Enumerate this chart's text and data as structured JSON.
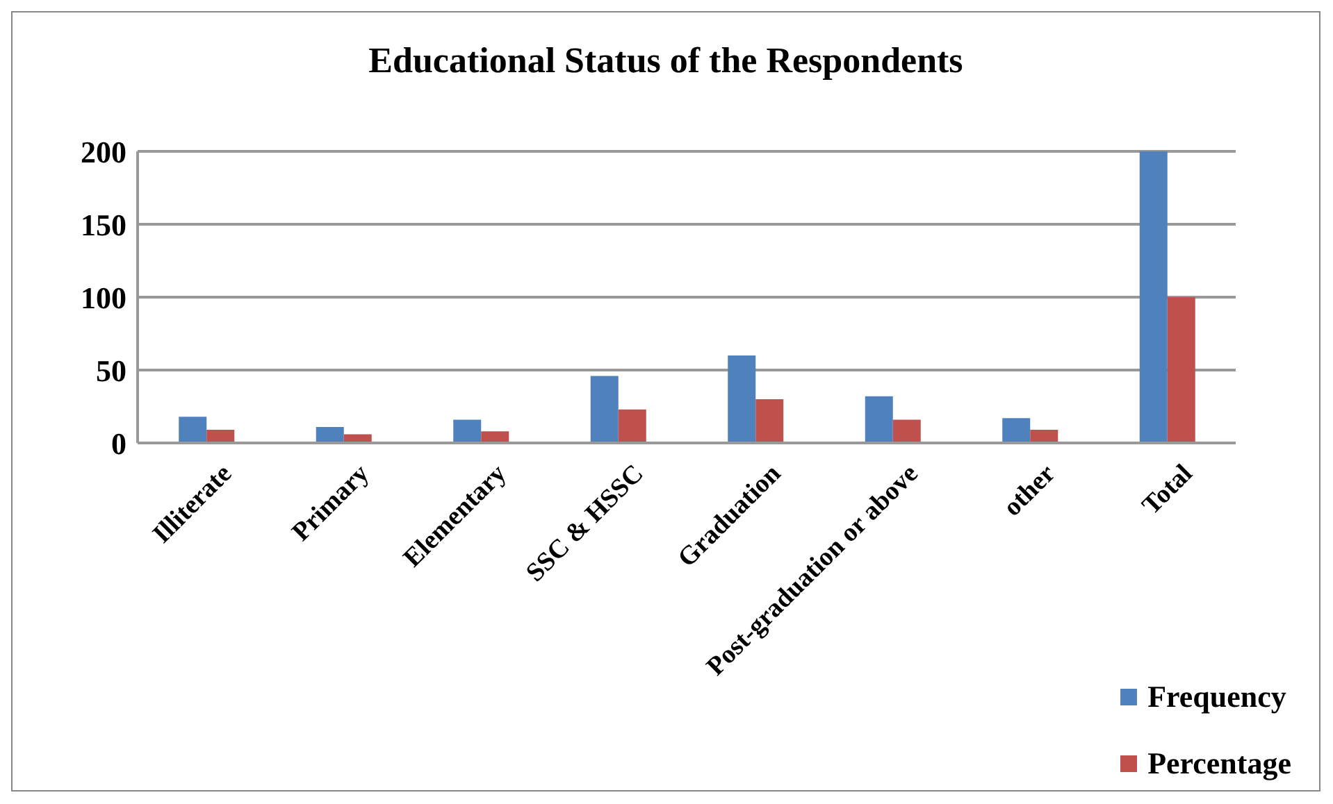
{
  "chart_data": {
    "type": "bar",
    "title": "Educational Status of the Respondents",
    "categories": [
      "Illiterate",
      "Primary",
      "Elementary",
      "SSC & HSSC",
      "Graduation",
      "Post-graduation or above",
      "other",
      "Total"
    ],
    "series": [
      {
        "name": "Frequency",
        "color": "#4f81bd",
        "values": [
          18,
          11,
          16,
          46,
          60,
          32,
          17,
          200
        ]
      },
      {
        "name": "Percentage",
        "color": "#c0504d",
        "values": [
          9,
          6,
          8,
          23,
          30,
          16,
          9,
          100
        ]
      }
    ],
    "ylim": [
      0,
      200
    ],
    "yticks": [
      0,
      50,
      100,
      150,
      200
    ],
    "grid": "y",
    "legend": "bottom right"
  }
}
